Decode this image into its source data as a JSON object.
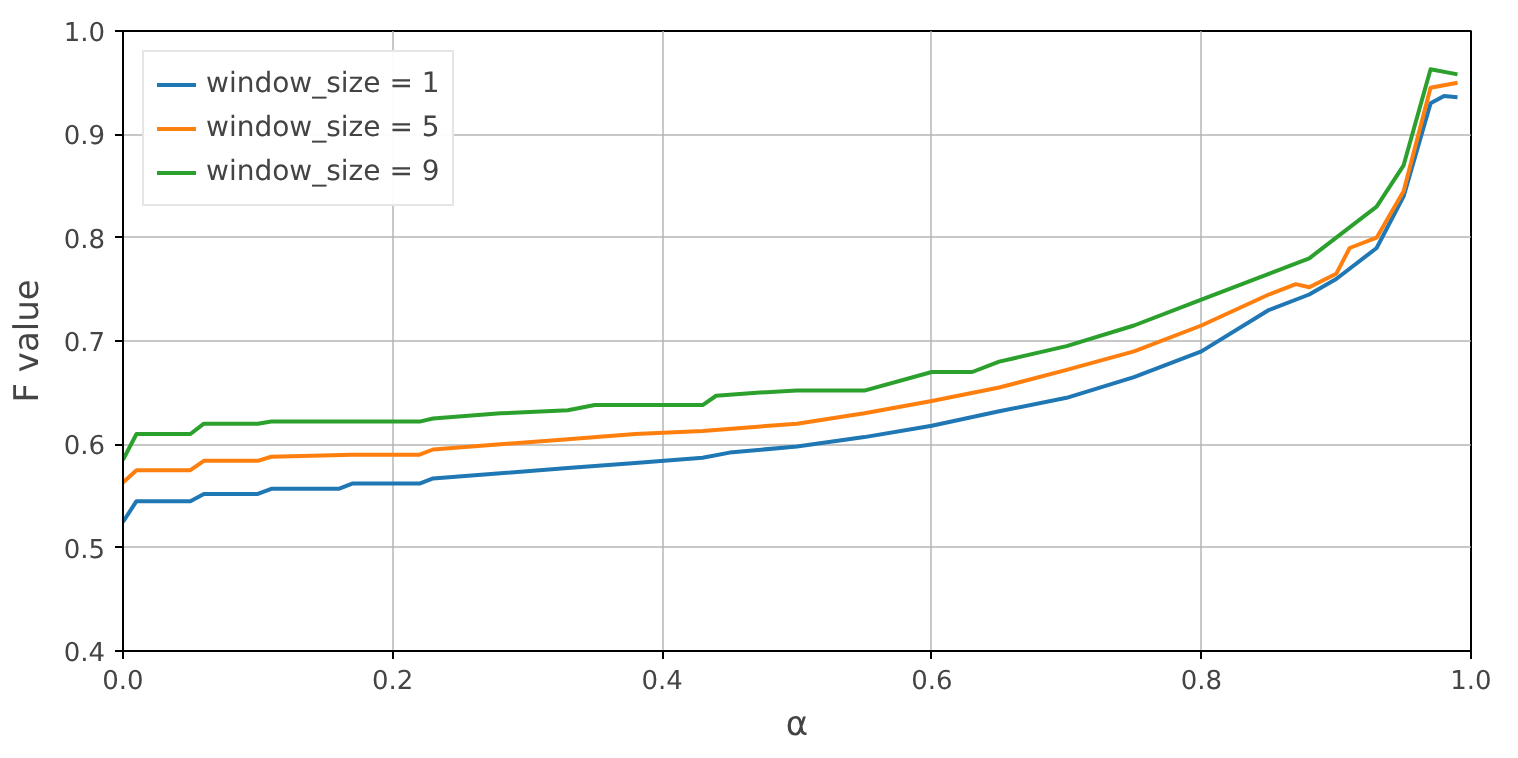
{
  "chart_data": {
    "type": "line",
    "xlabel": "α",
    "ylabel": "F value",
    "xlim": [
      0,
      1
    ],
    "ylim": [
      0.4,
      1.0
    ],
    "xticks": [
      {
        "value": 0,
        "label": "0.0"
      },
      {
        "value": 0.2,
        "label": "0.2"
      },
      {
        "value": 0.4,
        "label": "0.4"
      },
      {
        "value": 0.6,
        "label": "0.6"
      },
      {
        "value": 0.8,
        "label": "0.8"
      },
      {
        "value": 1,
        "label": "1.0"
      }
    ],
    "yticks": [
      0.4,
      0.5,
      0.6,
      0.7,
      0.8,
      0.9,
      {
        "value": 1.0,
        "label": "1.0"
      }
    ],
    "grid": true,
    "legend": "top left",
    "line_style": "solid",
    "series": [
      {
        "name": "window_size = 1",
        "color": "#1f77b4",
        "x": [
          0,
          0.01,
          0.05,
          0.06,
          0.1,
          0.11,
          0.16,
          0.17,
          0.22,
          0.23,
          0.28,
          0.33,
          0.38,
          0.43,
          0.45,
          0.5,
          0.55,
          0.6,
          0.65,
          0.7,
          0.75,
          0.8,
          0.85,
          0.88,
          0.9,
          0.93,
          0.95,
          0.97,
          0.98,
          0.99
        ],
        "values": [
          0.525,
          0.545,
          0.545,
          0.552,
          0.552,
          0.557,
          0.557,
          0.562,
          0.562,
          0.567,
          0.572,
          0.577,
          0.582,
          0.587,
          0.592,
          0.598,
          0.607,
          0.618,
          0.632,
          0.645,
          0.665,
          0.69,
          0.73,
          0.745,
          0.76,
          0.79,
          0.84,
          0.93,
          0.937,
          0.936
        ]
      },
      {
        "name": "window_size = 5",
        "color": "#ff7f0e",
        "x": [
          0,
          0.01,
          0.05,
          0.06,
          0.1,
          0.11,
          0.17,
          0.22,
          0.23,
          0.28,
          0.33,
          0.38,
          0.43,
          0.5,
          0.55,
          0.6,
          0.65,
          0.7,
          0.75,
          0.8,
          0.85,
          0.87,
          0.88,
          0.9,
          0.91,
          0.93,
          0.95,
          0.97,
          0.99
        ],
        "values": [
          0.563,
          0.575,
          0.575,
          0.584,
          0.584,
          0.588,
          0.59,
          0.59,
          0.595,
          0.6,
          0.605,
          0.61,
          0.613,
          0.62,
          0.63,
          0.642,
          0.655,
          0.672,
          0.69,
          0.715,
          0.745,
          0.755,
          0.752,
          0.765,
          0.79,
          0.8,
          0.845,
          0.945,
          0.95
        ]
      },
      {
        "name": "window_size = 9",
        "color": "#2ca02c",
        "x": [
          0,
          0.01,
          0.05,
          0.06,
          0.1,
          0.11,
          0.22,
          0.23,
          0.28,
          0.33,
          0.35,
          0.43,
          0.44,
          0.47,
          0.5,
          0.55,
          0.6,
          0.63,
          0.65,
          0.7,
          0.75,
          0.8,
          0.85,
          0.88,
          0.9,
          0.93,
          0.95,
          0.97,
          0.99
        ],
        "values": [
          0.585,
          0.61,
          0.61,
          0.62,
          0.62,
          0.622,
          0.622,
          0.625,
          0.63,
          0.633,
          0.638,
          0.638,
          0.647,
          0.65,
          0.652,
          0.652,
          0.67,
          0.67,
          0.68,
          0.695,
          0.715,
          0.74,
          0.765,
          0.78,
          0.8,
          0.83,
          0.87,
          0.963,
          0.958
        ]
      }
    ]
  }
}
